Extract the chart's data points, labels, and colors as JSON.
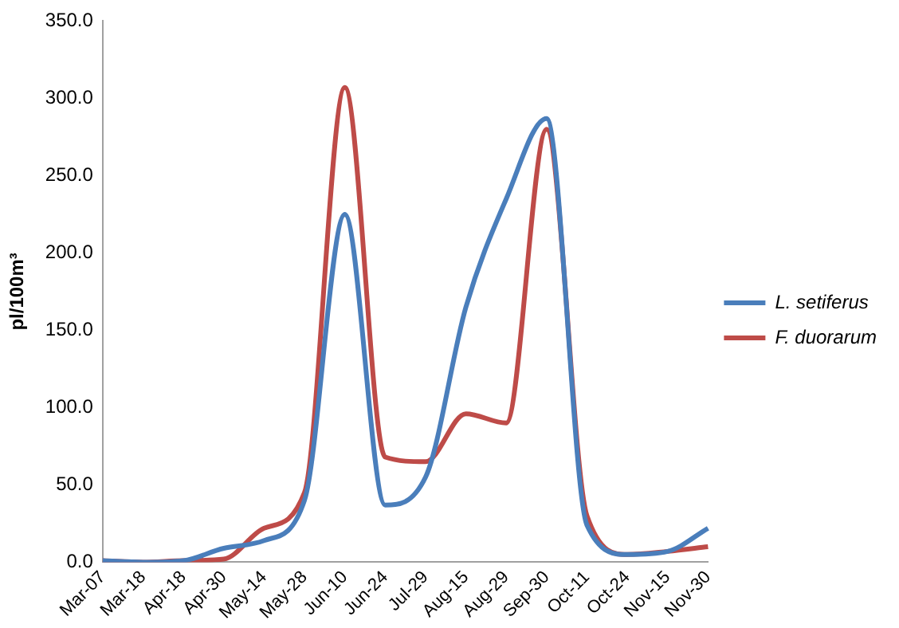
{
  "chart_data": {
    "type": "line",
    "ylabel": "pl/100m³",
    "categories": [
      "Mar-07",
      "Mar-18",
      "Apr-18",
      "Apr-30",
      "May-14",
      "May-28",
      "Jun-10",
      "Jun-24",
      "Jul-29",
      "Aug-15",
      "Aug-29",
      "Sep-30",
      "Oct-11",
      "Oct-24",
      "Nov-15",
      "Nov-30"
    ],
    "series": [
      {
        "name": "L. setiferus",
        "color": "#4a7ebb",
        "values": [
          1,
          0,
          1,
          9,
          14,
          40,
          225,
          37,
          55,
          165,
          235,
          287,
          24,
          5,
          7,
          22
        ]
      },
      {
        "name": "F. duorarum",
        "color": "#be4b48",
        "values": [
          1,
          0,
          1,
          2,
          22,
          45,
          307,
          68,
          65,
          96,
          90,
          280,
          30,
          5,
          7,
          10
        ]
      }
    ],
    "ylim": [
      0,
      350
    ],
    "yticks": [
      {
        "value": 0,
        "label": "0.0"
      },
      {
        "value": 50,
        "label": "50.0"
      },
      {
        "value": 100,
        "label": "100.0"
      },
      {
        "value": 150,
        "label": "150.0"
      },
      {
        "value": 200,
        "label": "200.0"
      },
      {
        "value": 250,
        "label": "250.0"
      },
      {
        "value": 300,
        "label": "300.0"
      },
      {
        "value": 350,
        "label": "350.0"
      }
    ],
    "grid": false,
    "legend": "right",
    "marker": "none",
    "line_style": "solid"
  }
}
